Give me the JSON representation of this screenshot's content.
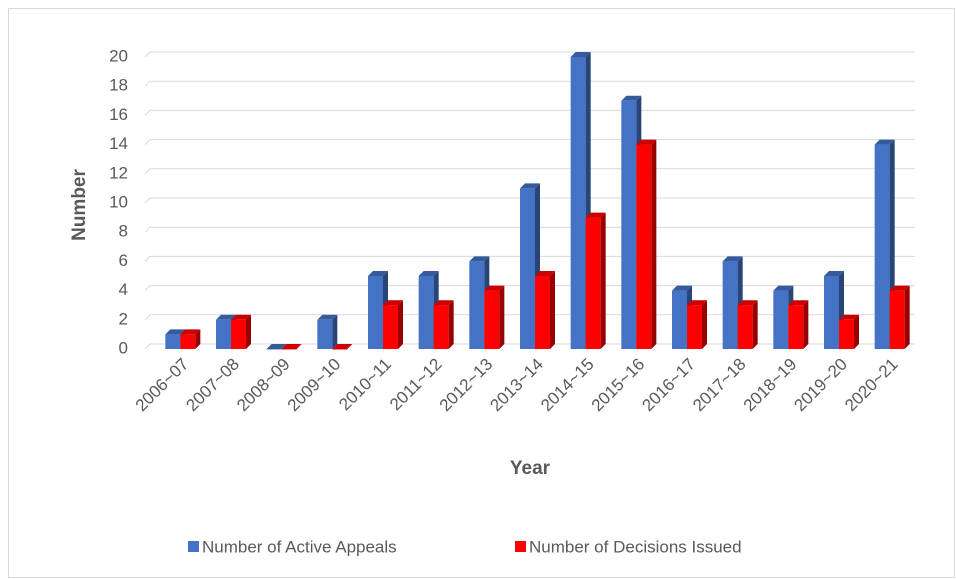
{
  "chart_data": {
    "type": "bar3d",
    "x_label": "Year",
    "y_label": "Number",
    "categories": [
      "2006~07",
      "2007~08",
      "2008~09",
      "2009~10",
      "2010~11",
      "2011~12",
      "2012~13",
      "2013~14",
      "2014~15",
      "2015~16",
      "2016~17",
      "2017~18",
      "2018~19",
      "2019~20",
      "2020~21"
    ],
    "series": [
      {
        "name": "Number of Active Appeals",
        "color": "#4472c4",
        "values": [
          1,
          2,
          0,
          2,
          5,
          5,
          6,
          11,
          20,
          17,
          4,
          6,
          4,
          5,
          14
        ]
      },
      {
        "name": "Number of Decisions Issued",
        "color": "#ff0000",
        "values": [
          1,
          2,
          0,
          0,
          3,
          3,
          4,
          5,
          9,
          14,
          3,
          3,
          3,
          2,
          4
        ]
      }
    ],
    "ylim": [
      0,
      20
    ],
    "yticks": [
      0,
      2,
      4,
      6,
      8,
      10,
      12,
      14,
      16,
      18,
      20
    ],
    "grid": true,
    "legend": "bottom"
  }
}
